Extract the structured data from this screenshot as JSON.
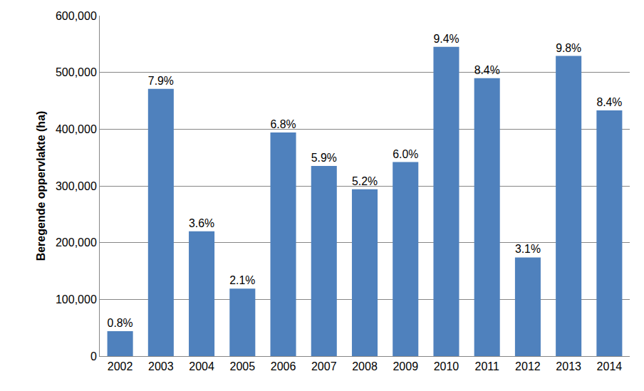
{
  "chart_data": {
    "type": "bar",
    "y_label": "Beregende oppervlakte (ha)",
    "categories": [
      "2002",
      "2003",
      "2004",
      "2005",
      "2006",
      "2007",
      "2008",
      "2009",
      "2010",
      "2011",
      "2012",
      "2013",
      "2014"
    ],
    "values": [
      44000,
      471000,
      220000,
      119000,
      394000,
      335000,
      294000,
      342000,
      545000,
      490000,
      174000,
      529000,
      433000
    ],
    "annotations": [
      "0.8%",
      "7.9%",
      "3.6%",
      "2.1%",
      "6.8%",
      "5.9%",
      "5.2%",
      "6.0%",
      "9.4%",
      "8.4%",
      "3.1%",
      "9.8%",
      "8.4%"
    ],
    "color": "#4f81bd",
    "ylim": [
      0,
      600000
    ],
    "yticks": [
      0,
      {
        "value": 100000,
        "label": "100,000"
      },
      {
        "value": 200000,
        "label": "200,000"
      },
      {
        "value": 300000,
        "label": "300,000"
      },
      {
        "value": 400000,
        "label": "400,000"
      },
      {
        "value": 500000,
        "label": "500,000"
      },
      {
        "value": 600000,
        "label": "600,000"
      }
    ],
    "grid": true
  }
}
